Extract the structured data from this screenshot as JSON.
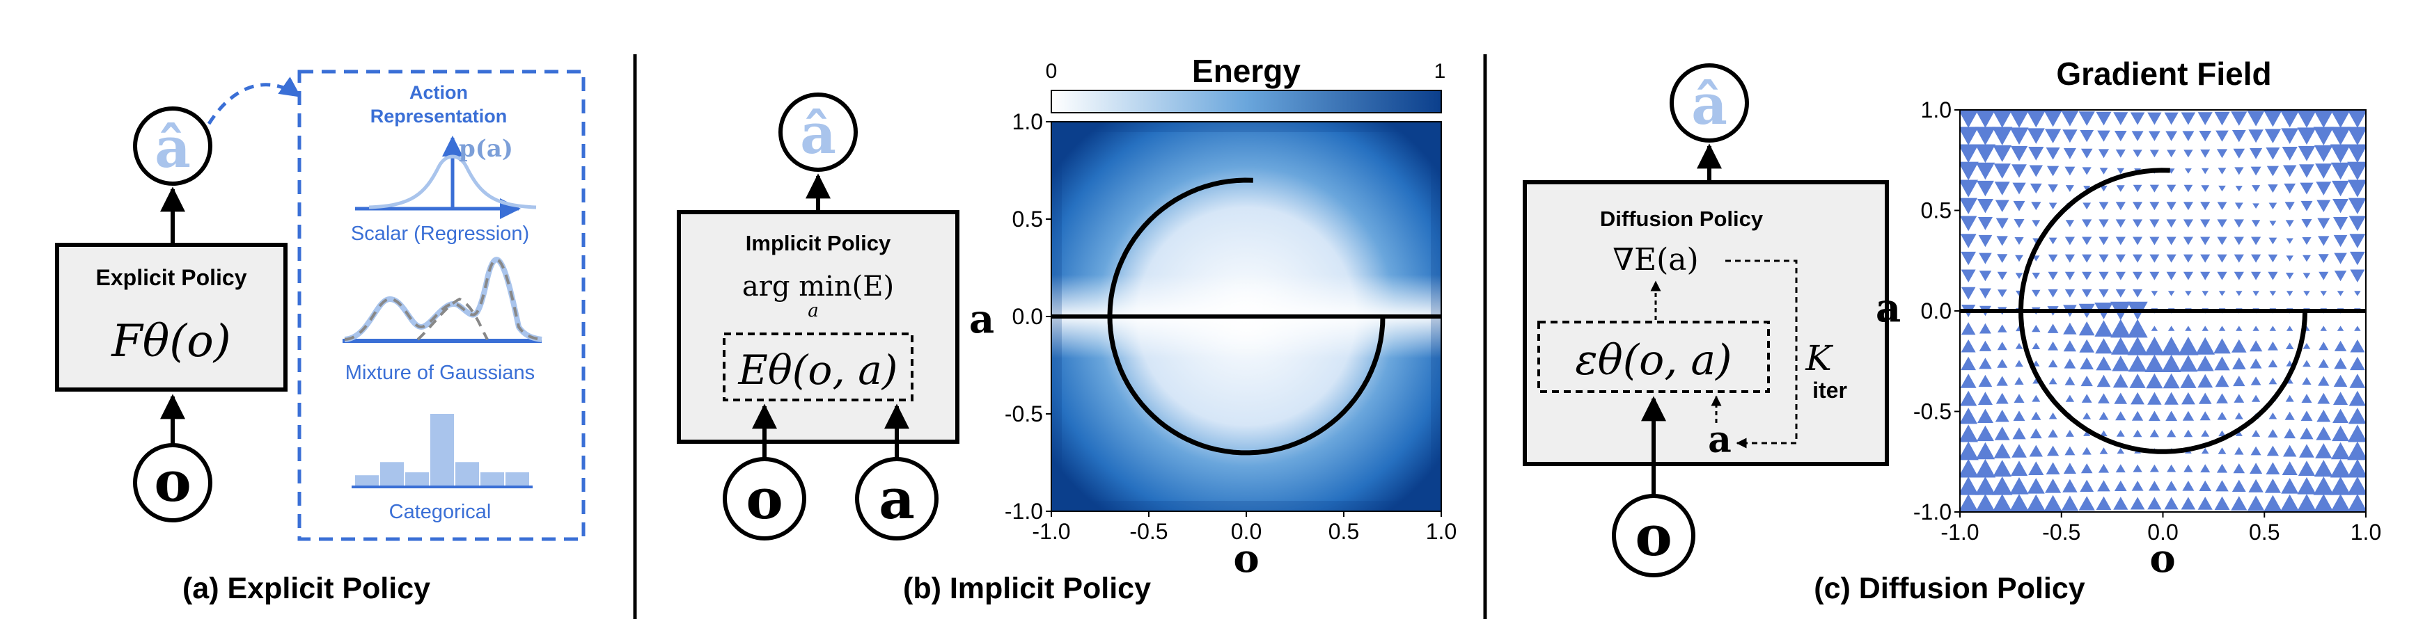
{
  "panel_a": {
    "caption": "(a) Explicit Policy",
    "policy_title": "Explicit Policy",
    "policy_formula": "Fθ(o)",
    "input_node": "o",
    "output_node": "â",
    "action_repr": {
      "title_line1": "Action",
      "title_line2": "Representation",
      "prob_label": "p(a)",
      "scalar_label": "Scalar (Regression)",
      "mog_label": "Mixture of Gaussians",
      "categorical_label": "Categorical",
      "categorical_bars": [
        0.16,
        0.34,
        0.2,
        1.0,
        0.34,
        0.2,
        0.2
      ]
    },
    "colors": {
      "accent": "#3a6fd6",
      "light": "#a9c4ec",
      "box": "#efefef"
    }
  },
  "panel_b": {
    "caption": "(b) Implicit Policy",
    "policy_title": "Implicit Policy",
    "argmin_text": "arg min(E)",
    "argmin_sub": "a",
    "energy_formula": "Eθ(o, a)",
    "input_o": "o",
    "input_a": "a",
    "output_node": "â",
    "colorbar": {
      "title": "Energy",
      "min_label": "0",
      "max_label": "1"
    },
    "colors": {
      "cmap_low": "#ffffff",
      "cmap_high": "#0b3f8c"
    },
    "chart_data": {
      "type": "heatmap",
      "title": "Energy",
      "xlabel": "o",
      "ylabel": "a",
      "xlim": [
        -1.0,
        1.0
      ],
      "ylim": [
        -1.0,
        1.0
      ],
      "x_ticks": [
        "-1.0",
        "-0.5",
        "0.0",
        "0.5",
        "1.0"
      ],
      "y_ticks": [
        "-1.0",
        "-0.5",
        "0.0",
        "0.5",
        "1.0"
      ],
      "y_tick_values": [
        -1.0,
        -0.5,
        0.0,
        0.5,
        1.0
      ],
      "x_tick_values": [
        -1.0,
        -0.5,
        0.0,
        0.5,
        1.0
      ],
      "overlay_curve": {
        "description_points": [
          [
            0.7,
            0.0
          ],
          [
            -0.7,
            0.0
          ]
        ],
        "radius": 0.7,
        "start_point": [
          0.05,
          0.7
        ]
      }
    }
  },
  "panel_c": {
    "caption": "(c) Diffusion Policy",
    "policy_title": "Diffusion Policy",
    "grad_formula": "∇E(a)",
    "eps_formula": "εθ(o, a)",
    "k_label": "K",
    "iter_label": "iter",
    "input_o": "o",
    "inner_a": "a",
    "output_node": "â",
    "colors": {
      "arrow": "#5b7fd6"
    },
    "chart_data": {
      "type": "scatter",
      "title": "Gradient Field",
      "xlabel": "o",
      "ylabel": "a",
      "xlim": [
        -1.0,
        1.0
      ],
      "ylim": [
        -1.0,
        1.0
      ],
      "x_ticks": [
        "-1.0",
        "-0.5",
        "0.0",
        "0.5",
        "1.0"
      ],
      "y_ticks": [
        "-1.0",
        "-0.5",
        "0.0",
        "0.5",
        "1.0"
      ],
      "x_tick_values": [
        -1.0,
        -0.5,
        0.0,
        0.5,
        1.0
      ],
      "y_tick_values": [
        -1.0,
        -0.5,
        0.0,
        0.5,
        1.0
      ],
      "grid_cols": 24,
      "grid_rows": 23
    }
  }
}
